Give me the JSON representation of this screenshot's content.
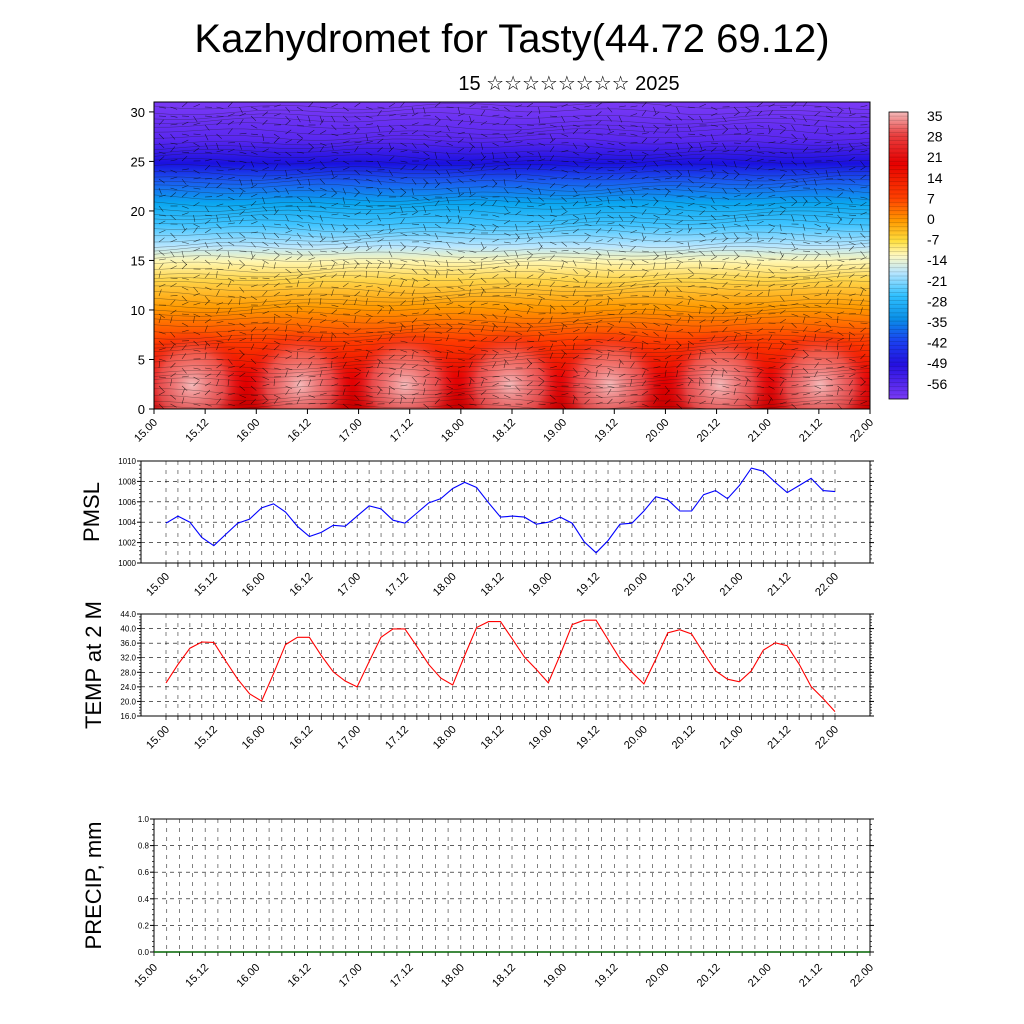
{
  "header": {
    "title": "Kazhydromet for Tasty(44.72 69.12)",
    "subtitle": "15 ☆☆☆☆☆☆☆☆ 2025"
  },
  "time_labels": [
    "15.00",
    "15.12",
    "16.00",
    "16.12",
    "17.00",
    "17.12",
    "18.00",
    "18.12",
    "19.00",
    "19.12",
    "20.00",
    "20.12",
    "21.00",
    "21.12",
    "22.00"
  ],
  "colorbar": {
    "labels": [
      "35",
      "28",
      "21",
      "14",
      "7",
      "0",
      "-7",
      "-14",
      "-21",
      "-28",
      "-35",
      "-42",
      "-49",
      "-56"
    ]
  },
  "chart_data": [
    {
      "type": "heatmap",
      "description_id": "temperature-wind-cross-section",
      "xlabel": "",
      "ylabel": "",
      "yticks": [
        "0",
        "5",
        "10",
        "15",
        "20",
        "25",
        "30"
      ],
      "ylim": [
        0,
        31
      ],
      "x_categories": [
        "15.00",
        "15.12",
        "16.00",
        "16.12",
        "17.00",
        "17.12",
        "18.00",
        "18.12",
        "19.00",
        "19.12",
        "20.00",
        "20.12",
        "21.00",
        "21.12",
        "22.00"
      ],
      "colorscale_range": [
        -60,
        38
      ],
      "wind_vectors": true
    },
    {
      "type": "line",
      "ylabel": "PMSL",
      "ylim": [
        1000,
        1010
      ],
      "yticks": [
        "1000",
        "1002",
        "1004",
        "1006",
        "1008",
        "1010"
      ],
      "x_start": 15.0,
      "x_step_hours": 3,
      "series": [
        {
          "color": "#0000ff",
          "values": [
            1003.9,
            1004.6,
            1004.0,
            1002.5,
            1001.7,
            1002.8,
            1003.9,
            1004.3,
            1005.4,
            1005.8,
            1005.0,
            1003.6,
            1002.6,
            1003.0,
            1003.7,
            1003.6,
            1004.6,
            1005.6,
            1005.3,
            1004.2,
            1003.9,
            1004.9,
            1005.9,
            1006.3,
            1007.3,
            1007.9,
            1007.4,
            1005.9,
            1004.5,
            1004.6,
            1004.5,
            1003.8,
            1004.0,
            1004.5,
            1003.9,
            1002.1,
            1001.0,
            1002.2,
            1003.8,
            1003.9,
            1005.1,
            1006.5,
            1006.2,
            1005.1,
            1005.1,
            1006.7,
            1007.1,
            1006.3,
            1007.6,
            1009.3,
            1009.0,
            1007.9,
            1006.9,
            1007.6,
            1008.3,
            1007.1,
            1007.0
          ]
        }
      ]
    },
    {
      "type": "line",
      "ylabel": "TEMP at 2 M",
      "ylim": [
        16,
        44
      ],
      "yticks": [
        "16.0",
        "20.0",
        "24.0",
        "28.0",
        "32.0",
        "36.0",
        "40.0",
        "44.0"
      ],
      "x_start": 15.0,
      "x_step_hours": 3,
      "series": [
        {
          "color": "#ff0000",
          "values": [
            25.1,
            30.1,
            34.6,
            36.3,
            36.2,
            31.1,
            26.1,
            22.1,
            20.1,
            27.6,
            35.6,
            37.6,
            37.6,
            32.6,
            28.1,
            25.6,
            24.0,
            30.9,
            37.6,
            39.9,
            39.9,
            35.1,
            30.1,
            26.4,
            24.5,
            32.6,
            40.3,
            41.9,
            41.9,
            37.1,
            32.2,
            28.8,
            25.1,
            32.8,
            41.1,
            42.3,
            42.3,
            37.0,
            31.7,
            28.0,
            24.8,
            31.6,
            38.8,
            39.7,
            38.5,
            33.3,
            28.4,
            26.1,
            25.4,
            28.4,
            34.1,
            36.1,
            35.3,
            30.2,
            24.1,
            20.8,
            17.2
          ]
        }
      ]
    },
    {
      "type": "line",
      "ylabel": "PRECIP, mm",
      "ylim": [
        0,
        1
      ],
      "yticks": [
        "0.0",
        "0.2",
        "0.4",
        "0.6",
        "0.8",
        "1.0"
      ],
      "x_start": 15.0,
      "x_step_hours": 3,
      "series": [
        {
          "color": "#006400",
          "values": [
            0,
            0,
            0,
            0,
            0,
            0,
            0,
            0,
            0,
            0,
            0,
            0,
            0,
            0,
            0,
            0,
            0,
            0,
            0,
            0,
            0,
            0,
            0,
            0,
            0,
            0,
            0,
            0,
            0,
            0,
            0,
            0,
            0,
            0,
            0,
            0,
            0,
            0,
            0,
            0,
            0,
            0,
            0,
            0,
            0,
            0,
            0,
            0,
            0,
            0,
            0,
            0,
            0,
            0,
            0,
            0,
            0
          ]
        }
      ]
    }
  ]
}
